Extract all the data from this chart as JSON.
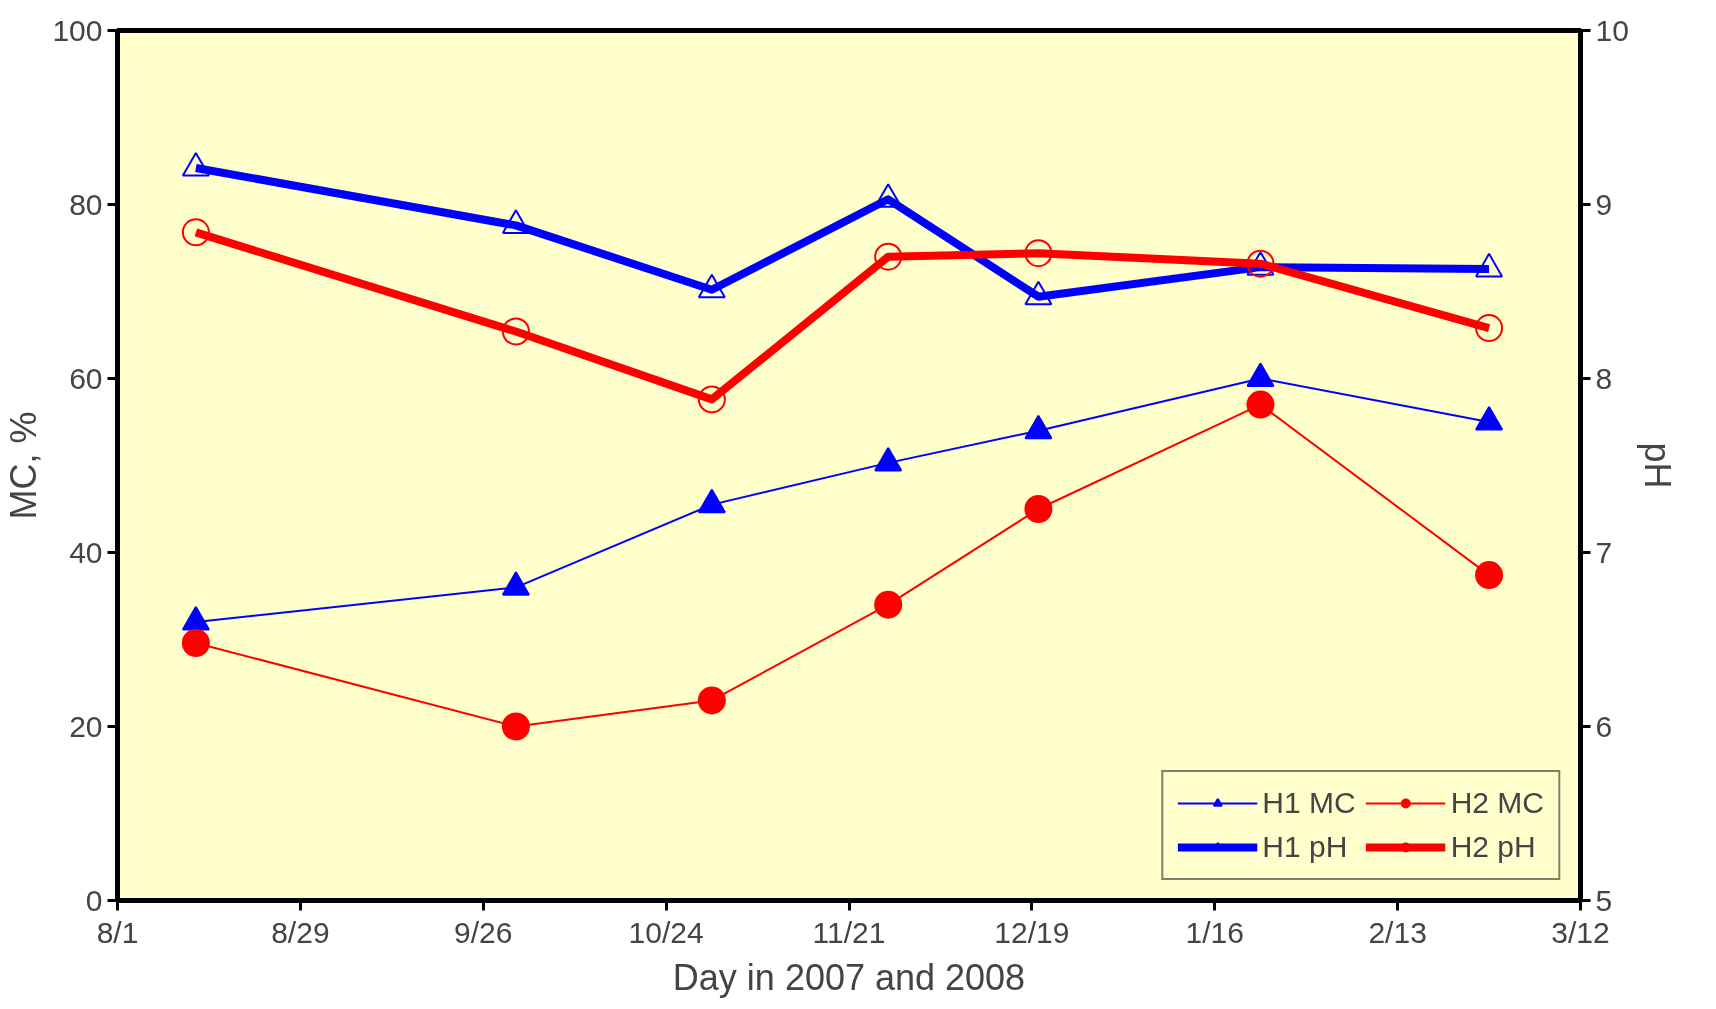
{
  "chart_data": {
    "type": "line",
    "xlabel": "Day in 2007 and 2008",
    "ylabel": "MC, %",
    "y2label": "pH",
    "x": [
      "2007-08-13",
      "2007-10-01",
      "2007-10-31",
      "2007-11-27",
      "2007-12-20",
      "2008-01-23",
      "2008-02-27"
    ],
    "series": [
      {
        "name": "H1 MC",
        "color": "#0000ff",
        "marker": "triangle",
        "values": [
          32,
          36,
          45.5,
          50.3,
          54,
          60,
          55
        ]
      },
      {
        "name": "H2 MC",
        "color": "#ff0000",
        "marker": "circle",
        "values": [
          29.6,
          20,
          23,
          34,
          45,
          57,
          37.4
        ]
      },
      {
        "name": "H1 pH",
        "color": "#0000ff",
        "marker": "triangle",
        "axis": "y2",
        "values": [
          9.21,
          8.88,
          8.51,
          9.03,
          8.47,
          8.64,
          8.63
        ]
      },
      {
        "name": "H2 pH",
        "color": "#ff0000",
        "marker": "circle",
        "axis": "y2",
        "values": [
          8.84,
          8.27,
          7.88,
          8.7,
          8.72,
          8.66,
          8.29
        ]
      }
    ],
    "xlim": [
      "2007-08-01",
      "2008-03-12"
    ],
    "xticks": [
      {
        "value": "2007-08-01",
        "label": "8/1"
      },
      {
        "value": "2007-08-29",
        "label": "8/29"
      },
      {
        "value": "2007-09-26",
        "label": "9/26"
      },
      {
        "value": "2007-10-24",
        "label": "10/24"
      },
      {
        "value": "2007-11-21",
        "label": "11/21"
      },
      {
        "value": "2007-12-19",
        "label": "12/19"
      },
      {
        "value": "2008-01-16",
        "label": "1/16"
      },
      {
        "value": "2008-02-13",
        "label": "2/13"
      },
      {
        "value": "2008-03-12",
        "label": "3/12"
      }
    ],
    "ylim": [
      0,
      100
    ],
    "yticks": [
      0,
      20,
      40,
      60,
      80,
      100
    ],
    "y2lim": [
      5,
      10
    ],
    "y2ticks": [
      5,
      6,
      7,
      8,
      9,
      10
    ],
    "grid": false,
    "legend": "bottom right",
    "line_style": "solid"
  }
}
